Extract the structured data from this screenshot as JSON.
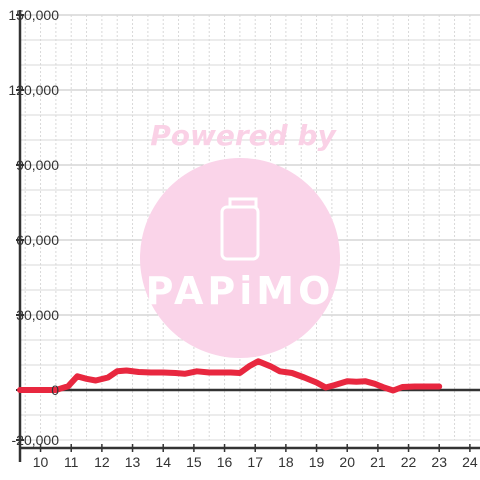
{
  "chart_data": {
    "type": "line",
    "title": "",
    "xlabel": "",
    "ylabel": "",
    "xlim": [
      9.33,
      24.33
    ],
    "ylim": [
      -20000,
      150000
    ],
    "grid": true,
    "legend": "none",
    "x_ticks": [
      "10",
      "11",
      "12",
      "13",
      "14",
      "15",
      "16",
      "17",
      "18",
      "19",
      "20",
      "21",
      "22",
      "23",
      "24"
    ],
    "x_tick_values": [
      10,
      11,
      12,
      13,
      14,
      15,
      16,
      17,
      18,
      19,
      20,
      21,
      22,
      23,
      24
    ],
    "y_tick_values": [
      -20000,
      0,
      30000,
      60000,
      90000,
      120000,
      150000
    ],
    "y_ticks": [
      "-20,000",
      "0",
      "30,000",
      "60,000",
      "90,000",
      "120,000",
      "150,000"
    ],
    "series": [
      {
        "color": "#e8273f",
        "x": [
          9.33,
          10.0,
          10.5,
          10.9,
          11.2,
          11.5,
          11.8,
          12.2,
          12.5,
          12.8,
          13.2,
          13.6,
          14.0,
          14.4,
          14.7,
          15.1,
          15.5,
          15.8,
          16.2,
          16.5,
          16.8,
          17.1,
          17.5,
          17.8,
          18.2,
          18.6,
          19.0,
          19.3,
          19.6,
          20.0,
          20.3,
          20.6,
          20.9,
          21.2,
          21.5,
          21.8,
          22.2,
          22.6,
          23.0
        ],
        "y": [
          0,
          0,
          0,
          1500,
          5500,
          4500,
          3800,
          5000,
          7500,
          7800,
          7200,
          7000,
          7000,
          6800,
          6500,
          7500,
          7000,
          7000,
          7000,
          6800,
          9500,
          11500,
          9500,
          7500,
          6800,
          5000,
          3000,
          1000,
          2000,
          3500,
          3300,
          3500,
          2500,
          1000,
          -200,
          1200,
          1400,
          1400,
          1400
        ]
      }
    ]
  },
  "watermark": {
    "text": "Powered by",
    "logo_text": "PAPiMO",
    "text_color": "#fad1e6",
    "circle_color": "#fad4e9"
  },
  "colors": {
    "axis": "#333333",
    "grid_major": "#c0c0c0",
    "grid_minor": "#d8d8d8"
  }
}
